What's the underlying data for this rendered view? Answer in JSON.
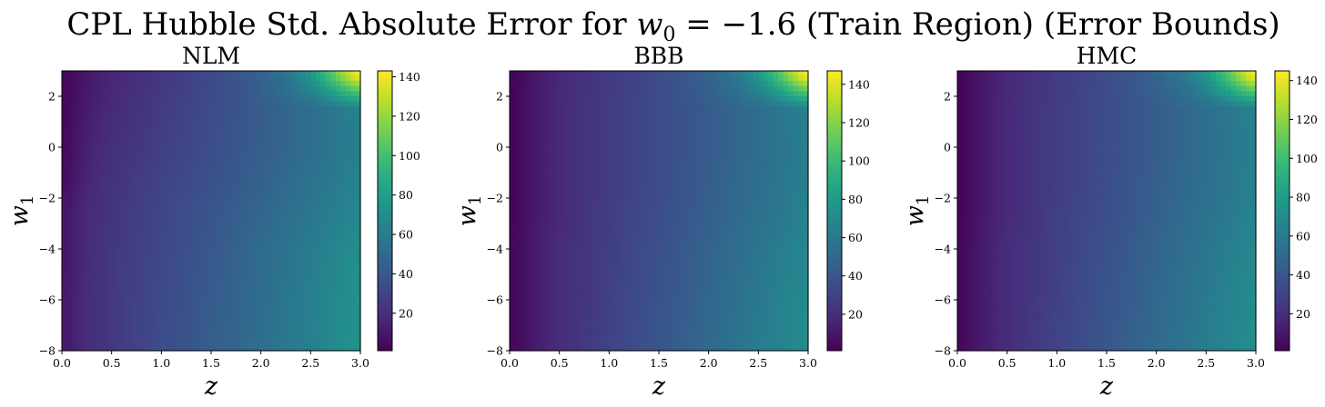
{
  "suptitle": {
    "prefix": "CPL Hubble Std. Absolute Error for ",
    "var": "w",
    "sub": "0",
    "value": " = −1.6 (Train Region) (Error Bounds)"
  },
  "colormap": "viridis",
  "colormap_stops": [
    "#440154",
    "#482878",
    "#3e4989",
    "#31688e",
    "#26828e",
    "#1f9e89",
    "#35b779",
    "#6ece58",
    "#b5de2b",
    "#fde725"
  ],
  "chart_data": [
    {
      "type": "heatmap",
      "title": "NLM",
      "xlabel": "z",
      "ylabel": {
        "var": "w",
        "sub": "1"
      },
      "xlim": [
        0.0,
        3.0
      ],
      "ylim": [
        -8,
        3
      ],
      "xticks": [
        "0.0",
        "0.5",
        "1.0",
        "1.5",
        "2.0",
        "2.5",
        "3.0"
      ],
      "yticks": [
        "−8",
        "−6",
        "−4",
        "−2",
        "0",
        "2"
      ],
      "colorbar": {
        "range": [
          1,
          143
        ],
        "ticks": [
          "20",
          "40",
          "60",
          "80",
          "100",
          "120",
          "140"
        ]
      },
      "grid_z": [
        0.05,
        0.25,
        0.5,
        0.75,
        1.0,
        1.25,
        1.5,
        1.75,
        2.0,
        2.25,
        2.5,
        2.75,
        2.95
      ],
      "grid_w1": [
        2.8,
        1.5,
        0,
        -1.5,
        -2.5,
        -4,
        -6,
        -7.8
      ],
      "values": [
        [
          4,
          10,
          16,
          20,
          24,
          28,
          33,
          38,
          45,
          55,
          75,
          110,
          140
        ],
        [
          4,
          12,
          18,
          22,
          26,
          30,
          34,
          38,
          42,
          47,
          52,
          58,
          63
        ],
        [
          5,
          14,
          20,
          24,
          28,
          31,
          35,
          39,
          43,
          47,
          52,
          57,
          62
        ],
        [
          7,
          16,
          22,
          26,
          30,
          33,
          37,
          41,
          45,
          50,
          55,
          60,
          65
        ],
        [
          10,
          18,
          23,
          27,
          31,
          35,
          39,
          43,
          47,
          52,
          57,
          62,
          67
        ],
        [
          10,
          18,
          24,
          28,
          32,
          36,
          40,
          45,
          50,
          55,
          60,
          66,
          70
        ],
        [
          11,
          19,
          24,
          29,
          33,
          37,
          42,
          46,
          51,
          57,
          62,
          68,
          72
        ],
        [
          11,
          19,
          24,
          29,
          34,
          38,
          43,
          47,
          52,
          58,
          63,
          69,
          73
        ]
      ]
    },
    {
      "type": "heatmap",
      "title": "BBB",
      "xlabel": "z",
      "ylabel": {
        "var": "w",
        "sub": "1"
      },
      "xlim": [
        0.0,
        3.0
      ],
      "ylim": [
        -8,
        3
      ],
      "xticks": [
        "0.0",
        "0.5",
        "1.0",
        "1.5",
        "2.0",
        "2.5",
        "3.0"
      ],
      "yticks": [
        "−8",
        "−6",
        "−4",
        "−2",
        "0",
        "2"
      ],
      "colorbar": {
        "range": [
          1,
          147
        ],
        "ticks": [
          "20",
          "40",
          "60",
          "80",
          "100",
          "120",
          "140"
        ]
      },
      "grid_z": [
        0.05,
        0.25,
        0.5,
        0.75,
        1.0,
        1.25,
        1.5,
        1.75,
        2.0,
        2.25,
        2.5,
        2.75,
        2.95
      ],
      "grid_w1": [
        2.8,
        1.5,
        0,
        -1.5,
        -2.5,
        -4,
        -6,
        -7.8
      ],
      "values": [
        [
          3,
          10,
          17,
          22,
          26,
          30,
          35,
          40,
          47,
          57,
          78,
          112,
          145
        ],
        [
          3,
          11,
          18,
          23,
          27,
          31,
          35,
          39,
          43,
          48,
          53,
          59,
          64
        ],
        [
          3,
          11,
          18,
          23,
          27,
          31,
          35,
          39,
          43,
          48,
          53,
          58,
          63
        ],
        [
          3,
          11,
          18,
          23,
          27,
          31,
          35,
          40,
          44,
          49,
          54,
          59,
          64
        ],
        [
          3,
          11,
          18,
          23,
          28,
          32,
          36,
          40,
          45,
          50,
          55,
          60,
          65
        ],
        [
          4,
          12,
          19,
          24,
          28,
          33,
          37,
          42,
          47,
          52,
          58,
          63,
          68
        ],
        [
          4,
          12,
          19,
          24,
          29,
          34,
          39,
          43,
          49,
          54,
          60,
          66,
          70
        ],
        [
          4,
          12,
          19,
          25,
          30,
          35,
          40,
          45,
          50,
          56,
          62,
          67,
          71
        ]
      ]
    },
    {
      "type": "heatmap",
      "title": "HMC",
      "xlabel": "z",
      "ylabel": {
        "var": "w",
        "sub": "1"
      },
      "xlim": [
        0.0,
        3.0
      ],
      "ylim": [
        -8,
        3
      ],
      "xticks": [
        "0.0",
        "0.5",
        "1.0",
        "1.5",
        "2.0",
        "2.5",
        "3.0"
      ],
      "yticks": [
        "−8",
        "−6",
        "−4",
        "−2",
        "0",
        "2"
      ],
      "colorbar": {
        "range": [
          1,
          145
        ],
        "ticks": [
          "20",
          "40",
          "60",
          "80",
          "100",
          "120",
          "140"
        ]
      },
      "grid_z": [
        0.05,
        0.25,
        0.5,
        0.75,
        1.0,
        1.25,
        1.5,
        1.75,
        2.0,
        2.25,
        2.5,
        2.75,
        2.95
      ],
      "grid_w1": [
        2.8,
        1.5,
        0,
        -1.5,
        -2.5,
        -4,
        -6,
        -7.8
      ],
      "values": [
        [
          3,
          10,
          17,
          22,
          26,
          30,
          35,
          40,
          47,
          57,
          76,
          110,
          142
        ],
        [
          3,
          11,
          18,
          23,
          27,
          31,
          35,
          39,
          43,
          48,
          53,
          59,
          64
        ],
        [
          3,
          11,
          18,
          23,
          27,
          31,
          35,
          39,
          43,
          48,
          53,
          58,
          63
        ],
        [
          3,
          11,
          18,
          23,
          27,
          31,
          35,
          40,
          44,
          49,
          54,
          59,
          64
        ],
        [
          3,
          11,
          18,
          23,
          28,
          32,
          36,
          40,
          45,
          50,
          55,
          60,
          65
        ],
        [
          4,
          12,
          19,
          24,
          28,
          33,
          37,
          42,
          47,
          52,
          58,
          63,
          68
        ],
        [
          4,
          12,
          19,
          24,
          29,
          34,
          39,
          43,
          49,
          54,
          60,
          66,
          70
        ],
        [
          4,
          12,
          19,
          25,
          30,
          35,
          40,
          45,
          50,
          56,
          62,
          67,
          71
        ]
      ]
    }
  ]
}
